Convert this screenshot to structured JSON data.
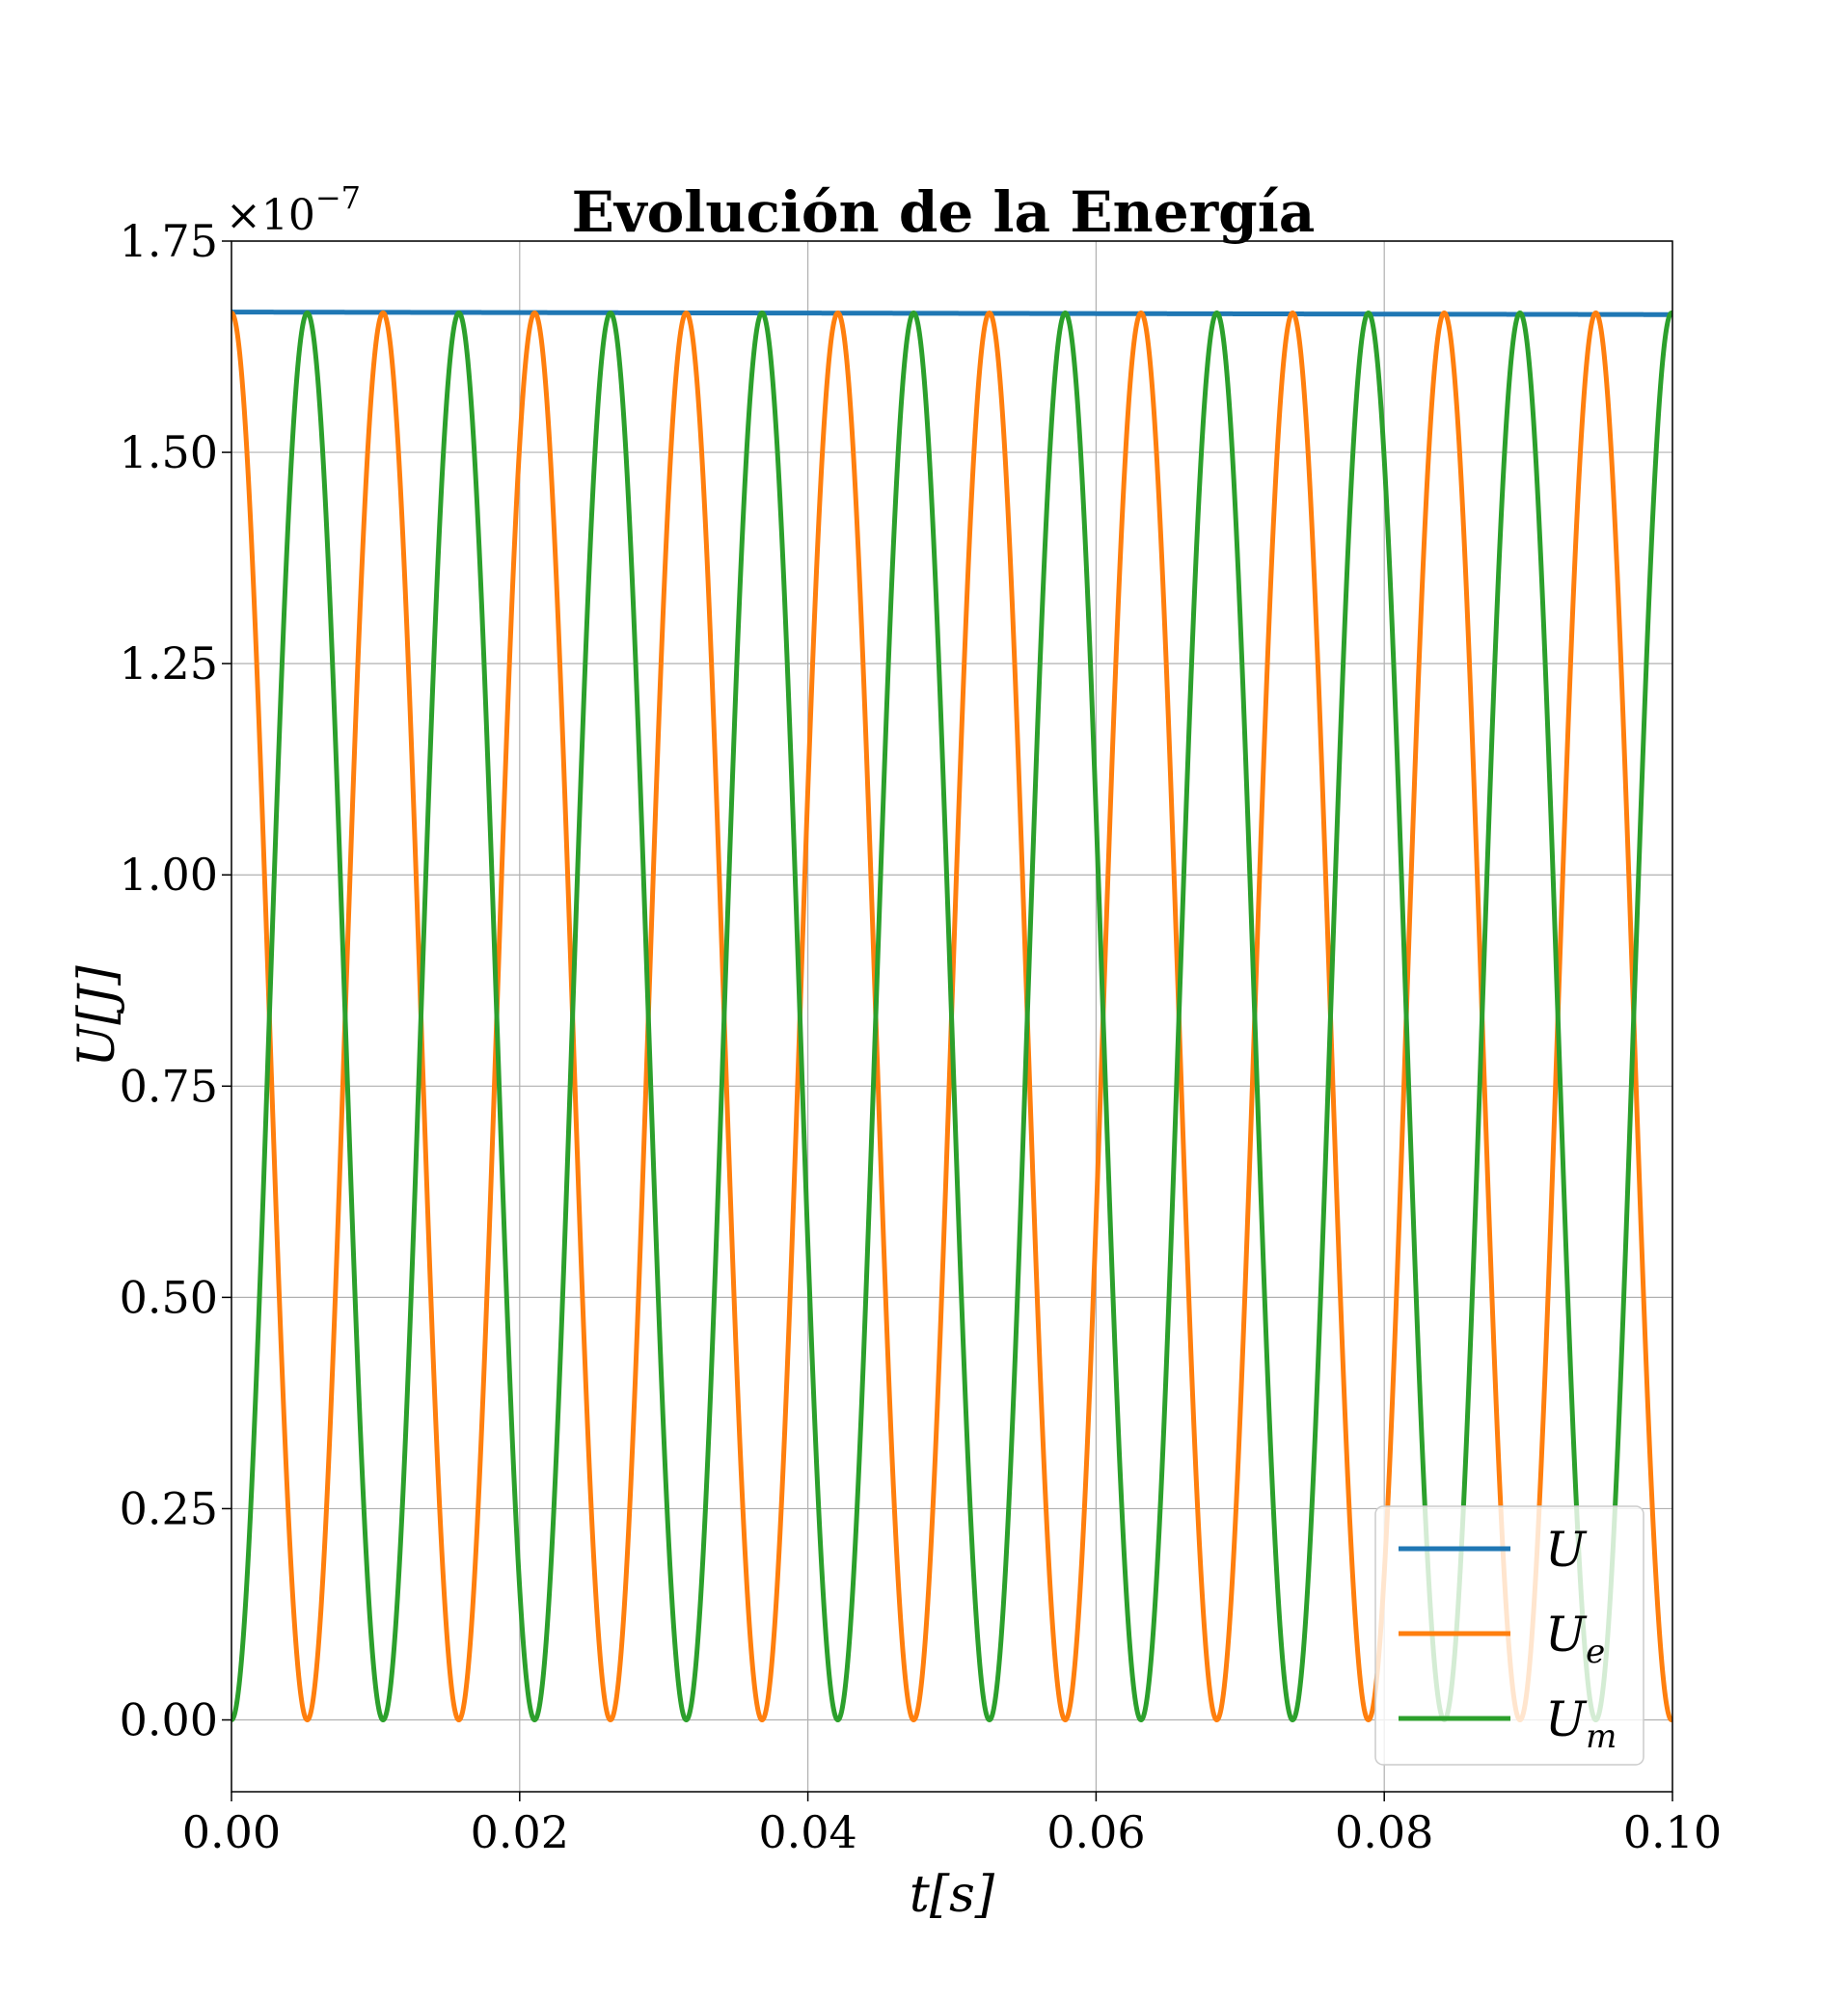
{
  "chart_data": {
    "type": "line",
    "title": "Evolución de la Energía",
    "xlabel": "t[s]",
    "ylabel": "U[J]",
    "y_offset_text": "×10",
    "y_offset_exponent": "−7",
    "xlim": [
      0.0,
      0.1
    ],
    "ylim": [
      -0.085,
      1.75
    ],
    "x_ticks": [
      0.0,
      0.02,
      0.04,
      0.06,
      0.08,
      0.1
    ],
    "x_tick_labels": [
      "0.00",
      "0.02",
      "0.04",
      "0.06",
      "0.08",
      "0.10"
    ],
    "y_ticks": [
      0.0,
      0.25,
      0.5,
      0.75,
      1.0,
      1.25,
      1.5,
      1.75
    ],
    "y_tick_labels": [
      "0.00",
      "0.25",
      "0.50",
      "0.75",
      "1.00",
      "1.25",
      "1.50",
      "1.75"
    ],
    "grid": true,
    "legend_position": "lower-right",
    "amplitude": 1.665,
    "oscillation_period": 0.01052,
    "series": [
      {
        "name": "U",
        "color": "#1f77b4",
        "kind": "total",
        "start": 1.666,
        "end": 1.663
      },
      {
        "name": "U_e",
        "color": "#ff7f0e",
        "kind": "cos_squared"
      },
      {
        "name": "U_m",
        "color": "#2ca02c",
        "kind": "sin_squared"
      }
    ],
    "legend": [
      {
        "base": "U",
        "sub": ""
      },
      {
        "base": "U",
        "sub": "e"
      },
      {
        "base": "U",
        "sub": "m"
      }
    ]
  }
}
